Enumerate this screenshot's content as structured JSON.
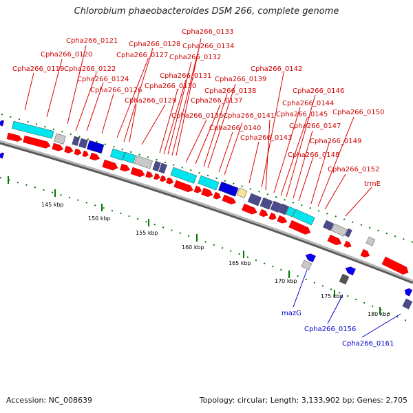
{
  "title": "Chlorobium phaeobacteroides DSM 266, complete genome",
  "accession": "Accession: NC_008639",
  "topology": "Topology: circular; Length: 3,133,902 bp; Genes: 2,705",
  "colors": {
    "backbone": "#8c8c8c",
    "forward_gene": "#ff0000",
    "reverse_gene": "#0000ff",
    "label_red": "#cc0000",
    "label_blue": "#0000cc",
    "tick": "#007700",
    "cyan": "#00e5ee",
    "navy": "#4b4a8c",
    "blue": "#0000dd",
    "grey": "#c8c8c8",
    "yellow": "#f5e29a"
  },
  "scale_labels": [
    "145 kbp",
    "150 kbp",
    "155 kbp",
    "160 kbp",
    "165 kbp",
    "170 kbp",
    "175 kbp",
    "180 kbp"
  ],
  "red_labels": [
    "Cpha266_0133",
    "Cpha266_0121",
    "Cpha266_0128",
    "Cpha266_0134",
    "Cpha266_0120",
    "Cpha266_0127",
    "Cpha266_0132",
    "Cpha266_0119",
    "Cpha266_0122",
    "Cpha266_0142",
    "Cpha266_0124",
    "Cpha266_0131",
    "Cpha266_0139",
    "Cpha266_0126",
    "Cpha266_0130",
    "Cpha266_0138",
    "Cpha266_0146",
    "Cpha266_0129",
    "Cpha266_0137",
    "Cpha266_0144",
    "Cpha266_0150",
    "Cpha266_0136",
    "Cpha266_0141",
    "Cpha266_0145",
    "Cpha266_0140",
    "Cpha266_0147",
    "Cpha266_0143",
    "Cpha266_0149",
    "Cpha266_0148",
    "Cpha266_0152",
    "trmE"
  ],
  "blue_labels": [
    "mazG",
    "Cpha266_0156",
    "Cpha266_0161"
  ]
}
